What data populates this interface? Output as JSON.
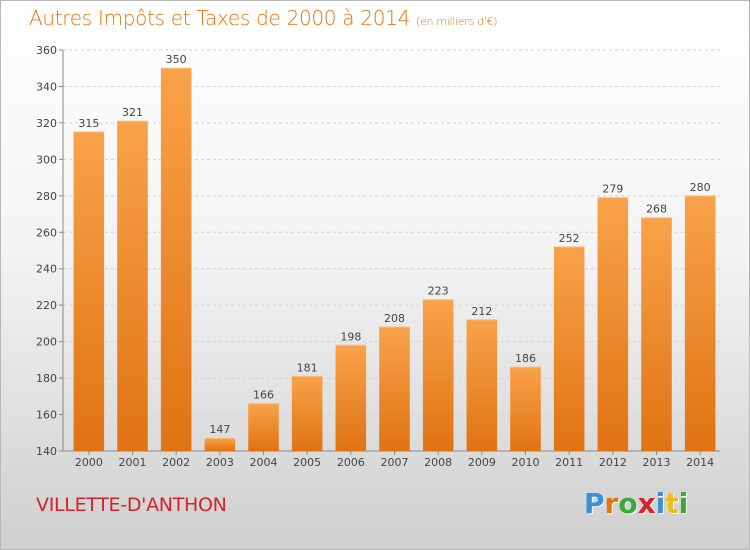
{
  "header": {
    "title": "Autres Impôts et Taxes de 2000 à 2014",
    "subtitle": "(en milliers d'€)"
  },
  "footer": {
    "city": "VILLETTE-D'ANTHON",
    "logo_letters": [
      "P",
      "r",
      "o",
      "x",
      "i",
      "t",
      "i"
    ],
    "logo_colors": [
      "#3a8fd6",
      "#e8740e",
      "#3aa83a",
      "#d5222b",
      "#3a8fd6",
      "#e8c01e",
      "#3aa83a"
    ]
  },
  "colors": {
    "bar_light": "#f9a24a",
    "bar_dark": "#e07313",
    "accent": "#e8740e",
    "city": "#d5222b"
  },
  "chart_data": {
    "type": "bar",
    "categories": [
      "2000",
      "2001",
      "2002",
      "2003",
      "2004",
      "2005",
      "2006",
      "2007",
      "2008",
      "2009",
      "2010",
      "2011",
      "2012",
      "2013",
      "2014"
    ],
    "values": [
      315,
      321,
      350,
      147,
      166,
      181,
      198,
      208,
      223,
      212,
      186,
      252,
      279,
      268,
      280
    ],
    "title": "Autres Impôts et Taxes de 2000 à 2014",
    "subtitle": "(en milliers d'€)",
    "xlabel": "",
    "ylabel": "",
    "ylim": [
      140,
      360
    ],
    "yticks": [
      140,
      160,
      180,
      200,
      220,
      240,
      260,
      280,
      300,
      320,
      340,
      360
    ],
    "grid": true,
    "legend": "none"
  }
}
